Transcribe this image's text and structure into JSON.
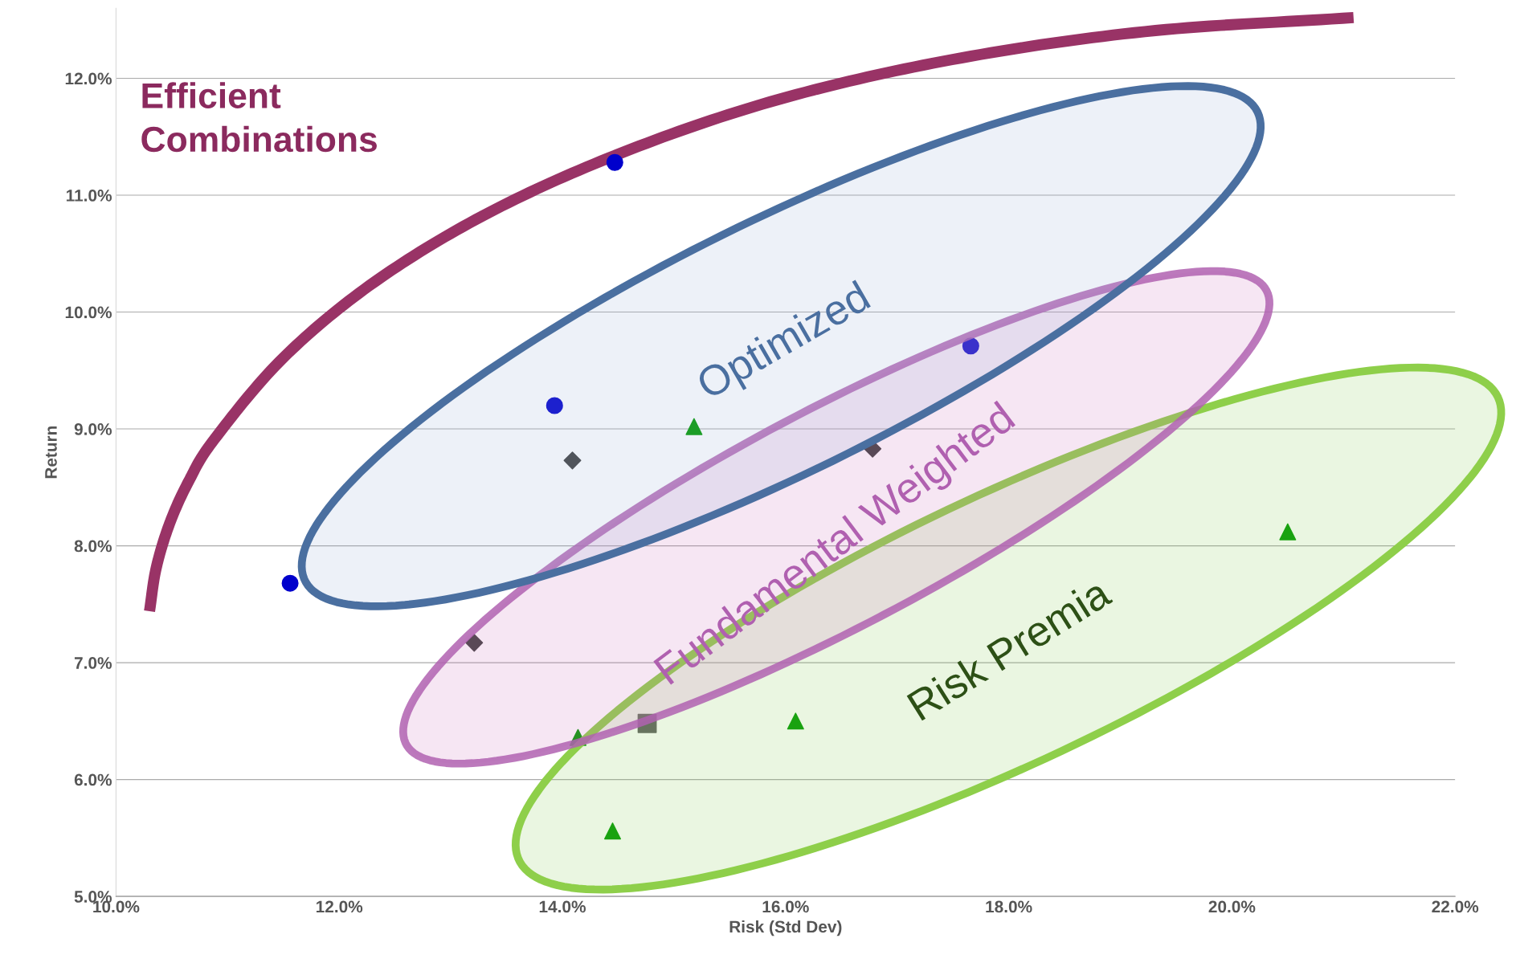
{
  "chart_data": {
    "type": "scatter",
    "xlabel": "Risk (Std Dev)",
    "ylabel": "Return",
    "xlim": [
      10,
      22
    ],
    "ylim": [
      5,
      12.6
    ],
    "xticks": [
      {
        "value": 10,
        "label": "10.0%"
      },
      {
        "value": 12,
        "label": "12.0%"
      },
      {
        "value": 14,
        "label": "14.0%"
      },
      {
        "value": 16,
        "label": "16.0%"
      },
      {
        "value": 18,
        "label": "18.0%"
      },
      {
        "value": 20,
        "label": "20.0%"
      },
      {
        "value": 22,
        "label": "22.0%"
      }
    ],
    "yticks": [
      {
        "value": 5,
        "label": "5.0%"
      },
      {
        "value": 6,
        "label": "6.0%"
      },
      {
        "value": 7,
        "label": "7.0%"
      },
      {
        "value": 8,
        "label": "8.0%"
      },
      {
        "value": 9,
        "label": "9.0%"
      },
      {
        "value": 10,
        "label": "10.0%"
      },
      {
        "value": 11,
        "label": "11.0%"
      },
      {
        "value": 12,
        "label": "12.0%"
      }
    ],
    "grid": "y",
    "legend": false,
    "annotations": [
      "Efficient\nCombinations",
      "Optimized",
      "Fundamental Weighted",
      "Risk Premia"
    ],
    "series": [
      {
        "type": "line",
        "color": "#993366",
        "marker": "none",
        "x": [
          10.3,
          10.36,
          10.48,
          10.65,
          10.88,
          11.5,
          12.32,
          13.34,
          14.55,
          15.94,
          17.49,
          19.22,
          21.09
        ],
        "values": [
          7.44,
          7.81,
          8.19,
          8.55,
          8.91,
          9.61,
          10.26,
          10.85,
          11.37,
          11.82,
          12.16,
          12.4,
          12.52
        ]
      },
      {
        "color": "#0000cc",
        "marker": "circle",
        "x": [
          11.56,
          14.47,
          13.93,
          17.66
        ],
        "values": [
          7.68,
          11.28,
          9.2,
          9.71
        ]
      },
      {
        "color": "#404040",
        "marker": "diamond",
        "x": [
          14.09,
          16.78,
          13.21
        ],
        "values": [
          8.73,
          8.83,
          7.17
        ]
      },
      {
        "color": "#009900",
        "marker": "triangle",
        "x": [
          15.18,
          14.14,
          14.45,
          16.09,
          20.5
        ],
        "values": [
          9.02,
          6.36,
          5.56,
          6.5,
          8.12
        ]
      },
      {
        "color": "#606060",
        "marker": "square",
        "x": [
          14.76
        ],
        "values": [
          6.48
        ]
      }
    ]
  }
}
